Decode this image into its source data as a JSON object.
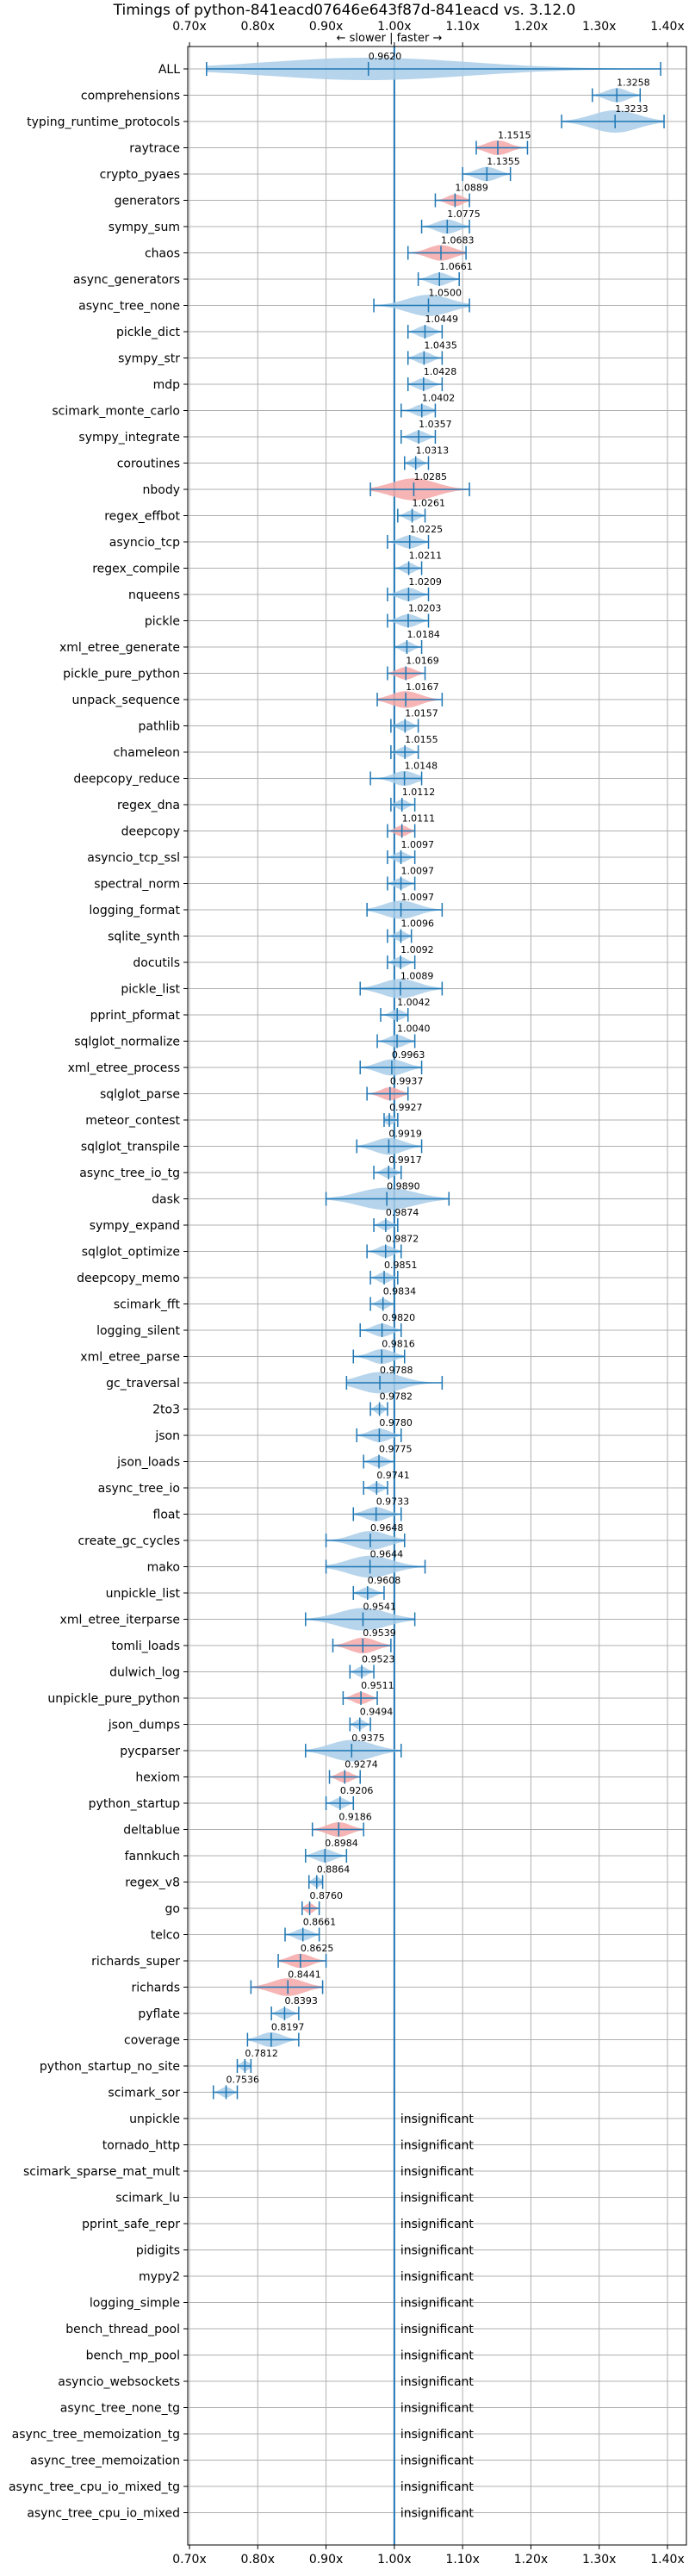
{
  "chart_data": {
    "type": "violin",
    "title": "Timings of python-841eacd07646e643f87d-841eacd vs. 3.12.0",
    "direction_label": "← slower | faster →",
    "xlim": [
      0.7,
      1.4
    ],
    "xticks": [
      "0.70x",
      "0.80x",
      "0.90x",
      "1.00x",
      "1.10x",
      "1.20x",
      "1.30x",
      "1.40x"
    ],
    "tick_values": [
      0.7,
      0.8,
      0.9,
      1.0,
      1.1,
      1.2,
      1.3,
      1.4
    ],
    "reference_x": 1.0,
    "insignificant_text": "insignificant",
    "colors": {
      "normal": "#a9cce8",
      "highlight": "#f4a7a7",
      "line": "#1f77b4"
    },
    "benchmarks": [
      {
        "name": "ALL",
        "value": 0.962,
        "label": "0.9620",
        "lo": 0.725,
        "hi": 1.39,
        "hl": false
      },
      {
        "name": "comprehensions",
        "value": 1.3258,
        "label": "1.3258",
        "lo": 1.29,
        "hi": 1.36,
        "hl": false
      },
      {
        "name": "typing_runtime_protocols",
        "value": 1.3233,
        "label": "1.3233",
        "lo": 1.245,
        "hi": 1.395,
        "hl": false
      },
      {
        "name": "raytrace",
        "value": 1.1515,
        "label": "1.1515",
        "lo": 1.12,
        "hi": 1.195,
        "hl": true
      },
      {
        "name": "crypto_pyaes",
        "value": 1.1355,
        "label": "1.1355",
        "lo": 1.1,
        "hi": 1.17,
        "hl": false
      },
      {
        "name": "generators",
        "value": 1.0889,
        "label": "1.0889",
        "lo": 1.06,
        "hi": 1.11,
        "hl": true
      },
      {
        "name": "sympy_sum",
        "value": 1.0775,
        "label": "1.0775",
        "lo": 1.04,
        "hi": 1.11,
        "hl": false
      },
      {
        "name": "chaos",
        "value": 1.0683,
        "label": "1.0683",
        "lo": 1.02,
        "hi": 1.105,
        "hl": true
      },
      {
        "name": "async_generators",
        "value": 1.0661,
        "label": "1.0661",
        "lo": 1.035,
        "hi": 1.095,
        "hl": false
      },
      {
        "name": "async_tree_none",
        "value": 1.05,
        "label": "1.0500",
        "lo": 0.97,
        "hi": 1.11,
        "hl": false
      },
      {
        "name": "pickle_dict",
        "value": 1.0449,
        "label": "1.0449",
        "lo": 1.02,
        "hi": 1.07,
        "hl": false
      },
      {
        "name": "sympy_str",
        "value": 1.0435,
        "label": "1.0435",
        "lo": 1.02,
        "hi": 1.07,
        "hl": false
      },
      {
        "name": "mdp",
        "value": 1.0428,
        "label": "1.0428",
        "lo": 1.02,
        "hi": 1.07,
        "hl": false
      },
      {
        "name": "scimark_monte_carlo",
        "value": 1.0402,
        "label": "1.0402",
        "lo": 1.01,
        "hi": 1.06,
        "hl": false
      },
      {
        "name": "sympy_integrate",
        "value": 1.0357,
        "label": "1.0357",
        "lo": 1.01,
        "hi": 1.06,
        "hl": false
      },
      {
        "name": "coroutines",
        "value": 1.0313,
        "label": "1.0313",
        "lo": 1.015,
        "hi": 1.05,
        "hl": false
      },
      {
        "name": "nbody",
        "value": 1.0285,
        "label": "1.0285",
        "lo": 0.965,
        "hi": 1.11,
        "hl": true
      },
      {
        "name": "regex_effbot",
        "value": 1.0261,
        "label": "1.0261",
        "lo": 1.005,
        "hi": 1.045,
        "hl": false
      },
      {
        "name": "asyncio_tcp",
        "value": 1.0225,
        "label": "1.0225",
        "lo": 0.99,
        "hi": 1.05,
        "hl": false
      },
      {
        "name": "regex_compile",
        "value": 1.0211,
        "label": "1.0211",
        "lo": 1.0,
        "hi": 1.04,
        "hl": false
      },
      {
        "name": "nqueens",
        "value": 1.0209,
        "label": "1.0209",
        "lo": 0.99,
        "hi": 1.05,
        "hl": false
      },
      {
        "name": "pickle",
        "value": 1.0203,
        "label": "1.0203",
        "lo": 0.99,
        "hi": 1.05,
        "hl": false
      },
      {
        "name": "xml_etree_generate",
        "value": 1.0184,
        "label": "1.0184",
        "lo": 1.0,
        "hi": 1.04,
        "hl": false
      },
      {
        "name": "pickle_pure_python",
        "value": 1.0169,
        "label": "1.0169",
        "lo": 0.99,
        "hi": 1.045,
        "hl": true
      },
      {
        "name": "unpack_sequence",
        "value": 1.0167,
        "label": "1.0167",
        "lo": 0.975,
        "hi": 1.07,
        "hl": true
      },
      {
        "name": "pathlib",
        "value": 1.0157,
        "label": "1.0157",
        "lo": 0.995,
        "hi": 1.035,
        "hl": false
      },
      {
        "name": "chameleon",
        "value": 1.0155,
        "label": "1.0155",
        "lo": 0.995,
        "hi": 1.035,
        "hl": false
      },
      {
        "name": "deepcopy_reduce",
        "value": 1.0148,
        "label": "1.0148",
        "lo": 0.965,
        "hi": 1.04,
        "hl": false
      },
      {
        "name": "regex_dna",
        "value": 1.0112,
        "label": "1.0112",
        "lo": 0.995,
        "hi": 1.03,
        "hl": false
      },
      {
        "name": "deepcopy",
        "value": 1.0111,
        "label": "1.0111",
        "lo": 0.99,
        "hi": 1.03,
        "hl": true
      },
      {
        "name": "asyncio_tcp_ssl",
        "value": 1.0097,
        "label": "1.0097",
        "lo": 0.99,
        "hi": 1.03,
        "hl": false
      },
      {
        "name": "spectral_norm",
        "value": 1.0097,
        "label": "1.0097",
        "lo": 0.99,
        "hi": 1.03,
        "hl": false
      },
      {
        "name": "logging_format",
        "value": 1.0097,
        "label": "1.0097",
        "lo": 0.96,
        "hi": 1.07,
        "hl": false
      },
      {
        "name": "sqlite_synth",
        "value": 1.0096,
        "label": "1.0096",
        "lo": 0.99,
        "hi": 1.025,
        "hl": false
      },
      {
        "name": "docutils",
        "value": 1.0092,
        "label": "1.0092",
        "lo": 0.99,
        "hi": 1.03,
        "hl": false
      },
      {
        "name": "pickle_list",
        "value": 1.0089,
        "label": "1.0089",
        "lo": 0.95,
        "hi": 1.07,
        "hl": false
      },
      {
        "name": "pprint_pformat",
        "value": 1.0042,
        "label": "1.0042",
        "lo": 0.98,
        "hi": 1.02,
        "hl": false
      },
      {
        "name": "sqlglot_normalize",
        "value": 1.004,
        "label": "1.0040",
        "lo": 0.975,
        "hi": 1.03,
        "hl": false
      },
      {
        "name": "xml_etree_process",
        "value": 0.9963,
        "label": "0.9963",
        "lo": 0.95,
        "hi": 1.04,
        "hl": false
      },
      {
        "name": "sqlglot_parse",
        "value": 0.9937,
        "label": "0.9937",
        "lo": 0.96,
        "hi": 1.02,
        "hl": true
      },
      {
        "name": "meteor_contest",
        "value": 0.9927,
        "label": "0.9927",
        "lo": 0.985,
        "hi": 1.005,
        "hl": false
      },
      {
        "name": "sqlglot_transpile",
        "value": 0.9919,
        "label": "0.9919",
        "lo": 0.945,
        "hi": 1.04,
        "hl": false
      },
      {
        "name": "async_tree_io_tg",
        "value": 0.9917,
        "label": "0.9917",
        "lo": 0.97,
        "hi": 1.01,
        "hl": false
      },
      {
        "name": "dask",
        "value": 0.989,
        "label": "0.9890",
        "lo": 0.9,
        "hi": 1.08,
        "hl": false
      },
      {
        "name": "sympy_expand",
        "value": 0.9874,
        "label": "0.9874",
        "lo": 0.97,
        "hi": 1.005,
        "hl": false
      },
      {
        "name": "sqlglot_optimize",
        "value": 0.9872,
        "label": "0.9872",
        "lo": 0.96,
        "hi": 1.01,
        "hl": false
      },
      {
        "name": "deepcopy_memo",
        "value": 0.9851,
        "label": "0.9851",
        "lo": 0.965,
        "hi": 1.005,
        "hl": false
      },
      {
        "name": "scimark_fft",
        "value": 0.9834,
        "label": "0.9834",
        "lo": 0.965,
        "hi": 1.0,
        "hl": false
      },
      {
        "name": "logging_silent",
        "value": 0.982,
        "label": "0.9820",
        "lo": 0.95,
        "hi": 1.01,
        "hl": false
      },
      {
        "name": "xml_etree_parse",
        "value": 0.9816,
        "label": "0.9816",
        "lo": 0.94,
        "hi": 1.015,
        "hl": false
      },
      {
        "name": "gc_traversal",
        "value": 0.9788,
        "label": "0.9788",
        "lo": 0.93,
        "hi": 1.07,
        "hl": false
      },
      {
        "name": "2to3",
        "value": 0.9782,
        "label": "0.9782",
        "lo": 0.965,
        "hi": 0.99,
        "hl": false
      },
      {
        "name": "json",
        "value": 0.978,
        "label": "0.9780",
        "lo": 0.945,
        "hi": 1.01,
        "hl": false
      },
      {
        "name": "json_loads",
        "value": 0.9775,
        "label": "0.9775",
        "lo": 0.955,
        "hi": 1.0,
        "hl": false
      },
      {
        "name": "async_tree_io",
        "value": 0.9741,
        "label": "0.9741",
        "lo": 0.955,
        "hi": 0.99,
        "hl": false
      },
      {
        "name": "float",
        "value": 0.9733,
        "label": "0.9733",
        "lo": 0.94,
        "hi": 1.01,
        "hl": false
      },
      {
        "name": "create_gc_cycles",
        "value": 0.9648,
        "label": "0.9648",
        "lo": 0.9,
        "hi": 1.015,
        "hl": false
      },
      {
        "name": "mako",
        "value": 0.9644,
        "label": "0.9644",
        "lo": 0.9,
        "hi": 1.045,
        "hl": false
      },
      {
        "name": "unpickle_list",
        "value": 0.9608,
        "label": "0.9608",
        "lo": 0.94,
        "hi": 0.985,
        "hl": false
      },
      {
        "name": "xml_etree_iterparse",
        "value": 0.9541,
        "label": "0.9541",
        "lo": 0.87,
        "hi": 1.03,
        "hl": false
      },
      {
        "name": "tomli_loads",
        "value": 0.9539,
        "label": "0.9539",
        "lo": 0.91,
        "hi": 0.995,
        "hl": true
      },
      {
        "name": "dulwich_log",
        "value": 0.9523,
        "label": "0.9523",
        "lo": 0.935,
        "hi": 0.97,
        "hl": false
      },
      {
        "name": "unpickle_pure_python",
        "value": 0.9511,
        "label": "0.9511",
        "lo": 0.925,
        "hi": 0.975,
        "hl": true
      },
      {
        "name": "json_dumps",
        "value": 0.9494,
        "label": "0.9494",
        "lo": 0.935,
        "hi": 0.965,
        "hl": false
      },
      {
        "name": "pycparser",
        "value": 0.9375,
        "label": "0.9375",
        "lo": 0.87,
        "hi": 1.01,
        "hl": false
      },
      {
        "name": "hexiom",
        "value": 0.9274,
        "label": "0.9274",
        "lo": 0.905,
        "hi": 0.95,
        "hl": true
      },
      {
        "name": "python_startup",
        "value": 0.9206,
        "label": "0.9206",
        "lo": 0.9,
        "hi": 0.94,
        "hl": false
      },
      {
        "name": "deltablue",
        "value": 0.9186,
        "label": "0.9186",
        "lo": 0.88,
        "hi": 0.955,
        "hl": true
      },
      {
        "name": "fannkuch",
        "value": 0.8984,
        "label": "0.8984",
        "lo": 0.87,
        "hi": 0.93,
        "hl": false
      },
      {
        "name": "regex_v8",
        "value": 0.8864,
        "label": "0.8864",
        "lo": 0.875,
        "hi": 0.895,
        "hl": false
      },
      {
        "name": "go",
        "value": 0.876,
        "label": "0.8760",
        "lo": 0.865,
        "hi": 0.89,
        "hl": true
      },
      {
        "name": "telco",
        "value": 0.8661,
        "label": "0.8661",
        "lo": 0.84,
        "hi": 0.89,
        "hl": false
      },
      {
        "name": "richards_super",
        "value": 0.8625,
        "label": "0.8625",
        "lo": 0.83,
        "hi": 0.9,
        "hl": true
      },
      {
        "name": "richards",
        "value": 0.8441,
        "label": "0.8441",
        "lo": 0.79,
        "hi": 0.895,
        "hl": true
      },
      {
        "name": "pyflate",
        "value": 0.8393,
        "label": "0.8393",
        "lo": 0.82,
        "hi": 0.86,
        "hl": false
      },
      {
        "name": "coverage",
        "value": 0.8197,
        "label": "0.8197",
        "lo": 0.785,
        "hi": 0.86,
        "hl": false
      },
      {
        "name": "python_startup_no_site",
        "value": 0.7812,
        "label": "0.7812",
        "lo": 0.77,
        "hi": 0.79,
        "hl": false
      },
      {
        "name": "scimark_sor",
        "value": 0.7536,
        "label": "0.7536",
        "lo": 0.735,
        "hi": 0.77,
        "hl": false
      },
      {
        "name": "unpickle",
        "insignificant": true
      },
      {
        "name": "tornado_http",
        "insignificant": true
      },
      {
        "name": "scimark_sparse_mat_mult",
        "insignificant": true
      },
      {
        "name": "scimark_lu",
        "insignificant": true
      },
      {
        "name": "pprint_safe_repr",
        "insignificant": true
      },
      {
        "name": "pidigits",
        "insignificant": true
      },
      {
        "name": "mypy2",
        "insignificant": true
      },
      {
        "name": "logging_simple",
        "insignificant": true
      },
      {
        "name": "bench_thread_pool",
        "insignificant": true
      },
      {
        "name": "bench_mp_pool",
        "insignificant": true
      },
      {
        "name": "asyncio_websockets",
        "insignificant": true
      },
      {
        "name": "async_tree_none_tg",
        "insignificant": true
      },
      {
        "name": "async_tree_memoization_tg",
        "insignificant": true
      },
      {
        "name": "async_tree_memoization",
        "insignificant": true
      },
      {
        "name": "async_tree_cpu_io_mixed_tg",
        "insignificant": true
      },
      {
        "name": "async_tree_cpu_io_mixed",
        "insignificant": true
      }
    ]
  }
}
